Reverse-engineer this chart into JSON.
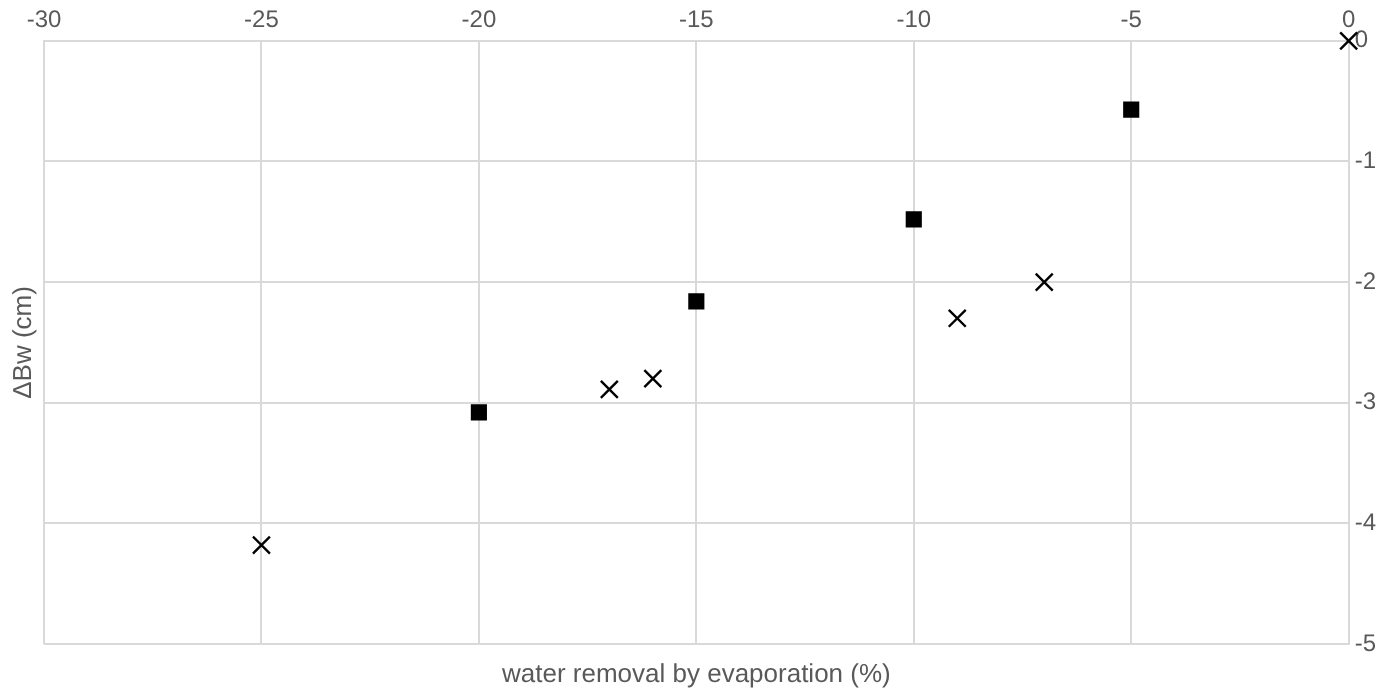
{
  "chart_data": {
    "type": "scatter",
    "xlabel": "water removal by evaporation (%)",
    "ylabel": "ΔBw (cm)",
    "xlim": [
      -30,
      0
    ],
    "xticks": [
      -30,
      -25,
      -20,
      -15,
      -10,
      -5,
      0
    ],
    "ylim": [
      -5,
      0
    ],
    "yticks": [
      -5,
      -4,
      -3,
      -2,
      -1,
      0
    ],
    "grid": true,
    "legend": false,
    "series": [
      {
        "color": "#000000",
        "marker": "square",
        "x": [
          -20,
          -15,
          -10,
          -5
        ],
        "values": [
          -3.08,
          -2.16,
          -1.48,
          -0.57
        ]
      },
      {
        "color": "#000000",
        "marker": "cross",
        "x": [
          -25,
          -17,
          -16,
          -9,
          -7,
          0
        ],
        "values": [
          -4.18,
          -2.89,
          -2.8,
          -2.3,
          -2.0,
          0
        ]
      }
    ]
  }
}
